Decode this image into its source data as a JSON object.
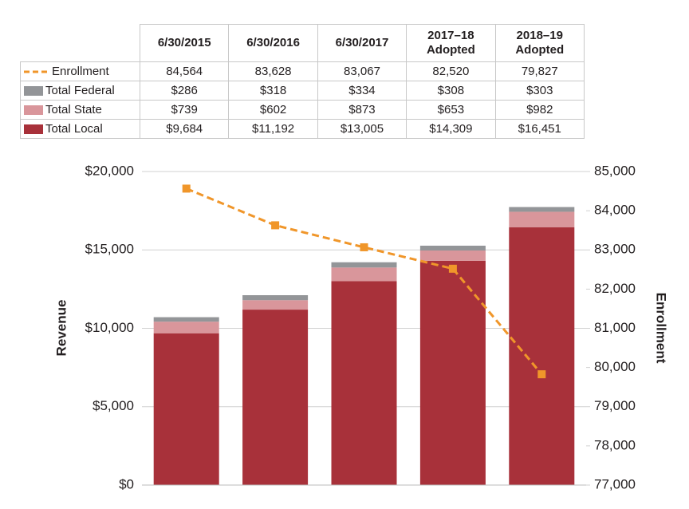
{
  "chart_data": {
    "type": "bar",
    "categories": [
      "6/30/2015",
      "6/30/2016",
      "6/30/2017",
      "2017–18 Adopted",
      "2018–19 Adopted"
    ],
    "series": [
      {
        "name": "Enrollment",
        "type": "line",
        "axis": "y2",
        "color": "#f0962a",
        "values": [
          84564,
          83628,
          83067,
          82520,
          79827
        ],
        "value_labels": [
          "84,564",
          "83,628",
          "83,067",
          "82,520",
          "79,827"
        ]
      },
      {
        "name": "Total Federal",
        "color": "#939598",
        "values": [
          286,
          318,
          334,
          308,
          303
        ],
        "value_labels": [
          "$286",
          "$318",
          "$334",
          "$308",
          "$303"
        ]
      },
      {
        "name": "Total State",
        "color": "#d9969b",
        "values": [
          739,
          602,
          873,
          653,
          982
        ],
        "value_labels": [
          "$739",
          "$602",
          "$873",
          "$653",
          "$982"
        ]
      },
      {
        "name": "Total Local",
        "color": "#a8313a",
        "values": [
          9684,
          11192,
          13005,
          14309,
          16451
        ],
        "value_labels": [
          "$9,684",
          "$11,192",
          "$13,005",
          "$14,309",
          "$16,451"
        ]
      }
    ],
    "ylabel": "Revenue",
    "y2label": "Enrollment",
    "ylim": [
      0,
      20000
    ],
    "yticks": [
      {
        "value": 0,
        "label": "$0"
      },
      {
        "value": 5000,
        "label": "$5,000"
      },
      {
        "value": 10000,
        "label": "$10,000"
      },
      {
        "value": 15000,
        "label": "$15,000"
      },
      {
        "value": 20000,
        "label": "$20,000"
      }
    ],
    "y2lim": [
      77000,
      85000
    ],
    "y2ticks": [
      {
        "value": 77000,
        "label": "77,000"
      },
      {
        "value": 78000,
        "label": "78,000"
      },
      {
        "value": 79000,
        "label": "79,000"
      },
      {
        "value": 80000,
        "label": "80,000"
      },
      {
        "value": 81000,
        "label": "81,000"
      },
      {
        "value": 82000,
        "label": "82,000"
      },
      {
        "value": 83000,
        "label": "83,000"
      },
      {
        "value": 84000,
        "label": "84,000"
      },
      {
        "value": 85000,
        "label": "85,000"
      }
    ],
    "grid": true
  }
}
